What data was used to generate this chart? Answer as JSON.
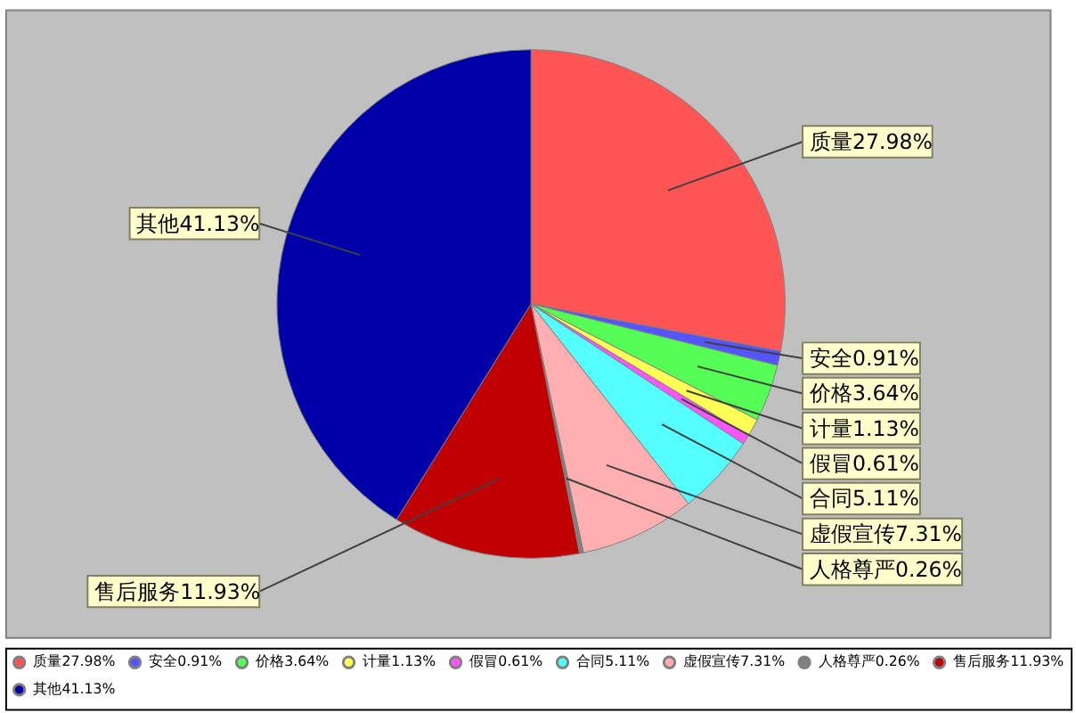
{
  "chart_data": {
    "type": "pie",
    "categories": [
      "质量",
      "安全",
      "价格",
      "计量",
      "假冒",
      "合同",
      "虚假宣传",
      "人格尊严",
      "售后服务",
      "其他"
    ],
    "values": [
      27.98,
      0.91,
      3.64,
      1.13,
      0.61,
      5.11,
      7.31,
      0.26,
      11.93,
      41.13
    ],
    "value_labels": [
      "27.98%",
      "0.91%",
      "3.64%",
      "1.13%",
      "0.61%",
      "5.11%",
      "7.31%",
      "0.26%",
      "11.93%",
      "41.13%"
    ],
    "colors": [
      "#ff5555",
      "#5555ff",
      "#55ff55",
      "#ffff55",
      "#ff55ff",
      "#55ffff",
      "#ffafaf",
      "#808080",
      "#c00000",
      "#0000a8"
    ],
    "legend": "bottom"
  }
}
